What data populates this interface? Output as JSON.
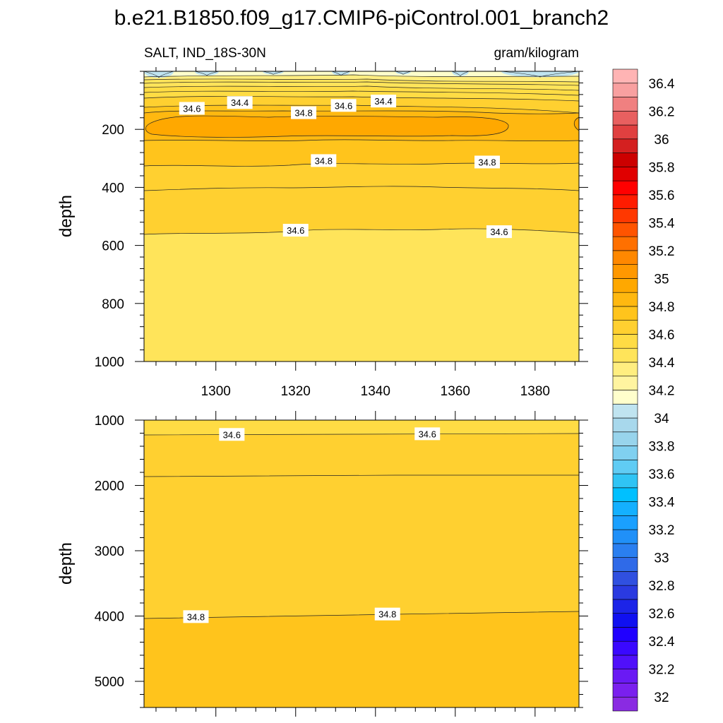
{
  "title": "b.e21.B1850.f09_g17.CMIP6-piControl.001_branch2",
  "chart_data": {
    "type": "heatmap",
    "subtype": "filled-contour",
    "variable_label": "SALT, IND_18S-30N",
    "units_label": "gram/kilogram",
    "x": {
      "label": "",
      "range": [
        1282,
        1391
      ],
      "ticks": [
        1300,
        1320,
        1340,
        1360,
        1380
      ]
    },
    "panels": [
      {
        "name": "upper",
        "ylabel": "depth",
        "ylim": [
          0,
          1000
        ],
        "yticks": [
          200,
          400,
          600,
          800,
          1000
        ],
        "contour_labels": [
          {
            "text": "34.6",
            "x": 1294,
            "depth": 130
          },
          {
            "text": "34.4",
            "x": 1306,
            "depth": 110
          },
          {
            "text": "34.8",
            "x": 1322,
            "depth": 145
          },
          {
            "text": "34.6",
            "x": 1332,
            "depth": 120
          },
          {
            "text": "34.4",
            "x": 1342,
            "depth": 105
          },
          {
            "text": "34.8",
            "x": 1327,
            "depth": 310
          },
          {
            "text": "34.8",
            "x": 1368,
            "depth": 315
          },
          {
            "text": "34.6",
            "x": 1320,
            "depth": 550
          },
          {
            "text": "34.6",
            "x": 1371,
            "depth": 555
          }
        ]
      },
      {
        "name": "lower",
        "ylabel": "depth",
        "ylim": [
          1000,
          5400
        ],
        "yticks": [
          1000,
          2000,
          3000,
          4000,
          5000
        ],
        "contour_labels": [
          {
            "text": "34.6",
            "x": 1304,
            "depth": 1230
          },
          {
            "text": "34.6",
            "x": 1353,
            "depth": 1220
          },
          {
            "text": "34.8",
            "x": 1295,
            "depth": 4020
          },
          {
            "text": "34.8",
            "x": 1343,
            "depth": 3980
          }
        ]
      }
    ],
    "colorbar": {
      "levels": [
        32,
        32.1,
        32.2,
        32.3,
        32.4,
        32.5,
        32.6,
        32.7,
        32.8,
        32.9,
        33,
        33.1,
        33.2,
        33.3,
        33.4,
        33.5,
        33.6,
        33.7,
        33.8,
        33.9,
        34,
        34.1,
        34.2,
        34.3,
        34.4,
        34.5,
        34.6,
        34.7,
        34.8,
        34.9,
        35,
        35.1,
        35.2,
        35.3,
        35.4,
        35.5,
        35.6,
        35.7,
        35.8,
        35.9,
        36,
        36.1,
        36.2,
        36.3,
        36.4,
        36.5
      ],
      "tick_labels": [
        "32",
        "32.2",
        "32.4",
        "32.6",
        "32.8",
        "33",
        "33.2",
        "33.4",
        "33.6",
        "33.8",
        "34",
        "34.2",
        "34.4",
        "34.6",
        "34.8",
        "35",
        "35.2",
        "35.4",
        "35.6",
        "35.8",
        "36",
        "36.2",
        "36.4"
      ],
      "colors": [
        "#8a2be2",
        "#7a20ee",
        "#6a1af4",
        "#5010fa",
        "#3a08ff",
        "#2000ff",
        "#1010f0",
        "#1c24e8",
        "#2a3ae0",
        "#3050e0",
        "#2f6ae8",
        "#2a7ff0",
        "#2090f8",
        "#1aa0ff",
        "#14b0ff",
        "#00c0ff",
        "#30c4f4",
        "#60ccf4",
        "#80d0f0",
        "#98d4ec",
        "#a8d8ec",
        "#c0e4f0",
        "#ffffcc",
        "#fff4a0",
        "#ffee80",
        "#ffe45a",
        "#ffdc44",
        "#ffd030",
        "#ffc41c",
        "#ffb810",
        "#ffa800",
        "#ff9800",
        "#ff8800",
        "#ff7000",
        "#ff5400",
        "#ff3800",
        "#ff1c00",
        "#ff0000",
        "#e00000",
        "#cc0000",
        "#d42020",
        "#e04040",
        "#e86060",
        "#f08080",
        "#f8a0a0",
        "#ffb4b4"
      ]
    }
  }
}
